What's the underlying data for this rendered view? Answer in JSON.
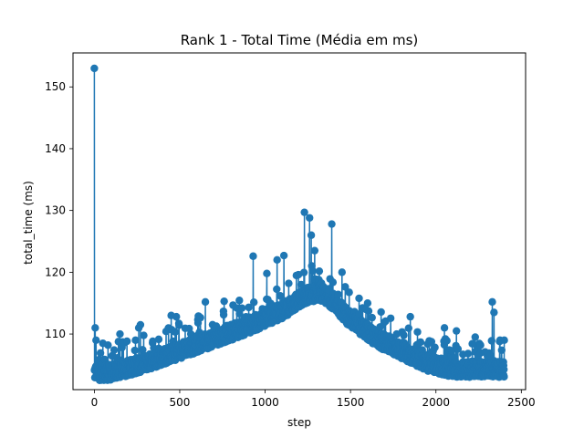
{
  "chart_data": {
    "type": "line",
    "title": "Rank 1 - Total Time (Média em ms)",
    "xlabel": "step",
    "ylabel": "total_time (ms)",
    "xlim": [
      -125,
      2525
    ],
    "ylim": [
      101,
      155.5
    ],
    "xticks": [
      0,
      500,
      1000,
      1500,
      2000,
      2500
    ],
    "xtick_labels": [
      "0",
      "500",
      "1000",
      "1500",
      "2000",
      "2500"
    ],
    "yticks": [
      110,
      120,
      130,
      140,
      150
    ],
    "ytick_labels": [
      "110",
      "120",
      "130",
      "140",
      "150"
    ],
    "grid": false,
    "marker": "circle",
    "series": [
      {
        "color": "#1f77b4",
        "n_points": 2400,
        "x_range": [
          0,
          2400
        ],
        "trend": [
          [
            0,
            103.5
          ],
          [
            100,
            103.5
          ],
          [
            300,
            105
          ],
          [
            500,
            107
          ],
          [
            700,
            109
          ],
          [
            900,
            111
          ],
          [
            1100,
            113.5
          ],
          [
            1250,
            116
          ],
          [
            1320,
            116.5
          ],
          [
            1400,
            115
          ],
          [
            1500,
            112
          ],
          [
            1650,
            109
          ],
          [
            1800,
            107
          ],
          [
            1950,
            105
          ],
          [
            2100,
            104
          ],
          [
            2400,
            104
          ]
        ],
        "spikes": [
          [
            0,
            153
          ],
          [
            5,
            111
          ],
          [
            10,
            109
          ],
          [
            50,
            108.5
          ],
          [
            80,
            108.2
          ],
          [
            150,
            110
          ],
          [
            260,
            111
          ],
          [
            270,
            111.5
          ],
          [
            450,
            113
          ],
          [
            480,
            112.8
          ],
          [
            650,
            115.2
          ],
          [
            760,
            115.3
          ],
          [
            930,
            122.6
          ],
          [
            1010,
            119.8
          ],
          [
            1070,
            122
          ],
          [
            1110,
            122.7
          ],
          [
            1230,
            129.7
          ],
          [
            1260,
            128.8
          ],
          [
            1270,
            126
          ],
          [
            1290,
            123.5
          ],
          [
            1390,
            127.8
          ],
          [
            1450,
            120
          ],
          [
            1600,
            115
          ],
          [
            1850,
            112.8
          ],
          [
            2050,
            111
          ],
          [
            2120,
            110.5
          ],
          [
            2230,
            109.5
          ],
          [
            2330,
            115.2
          ],
          [
            2340,
            113.5
          ],
          [
            2400,
            109
          ]
        ]
      }
    ]
  }
}
